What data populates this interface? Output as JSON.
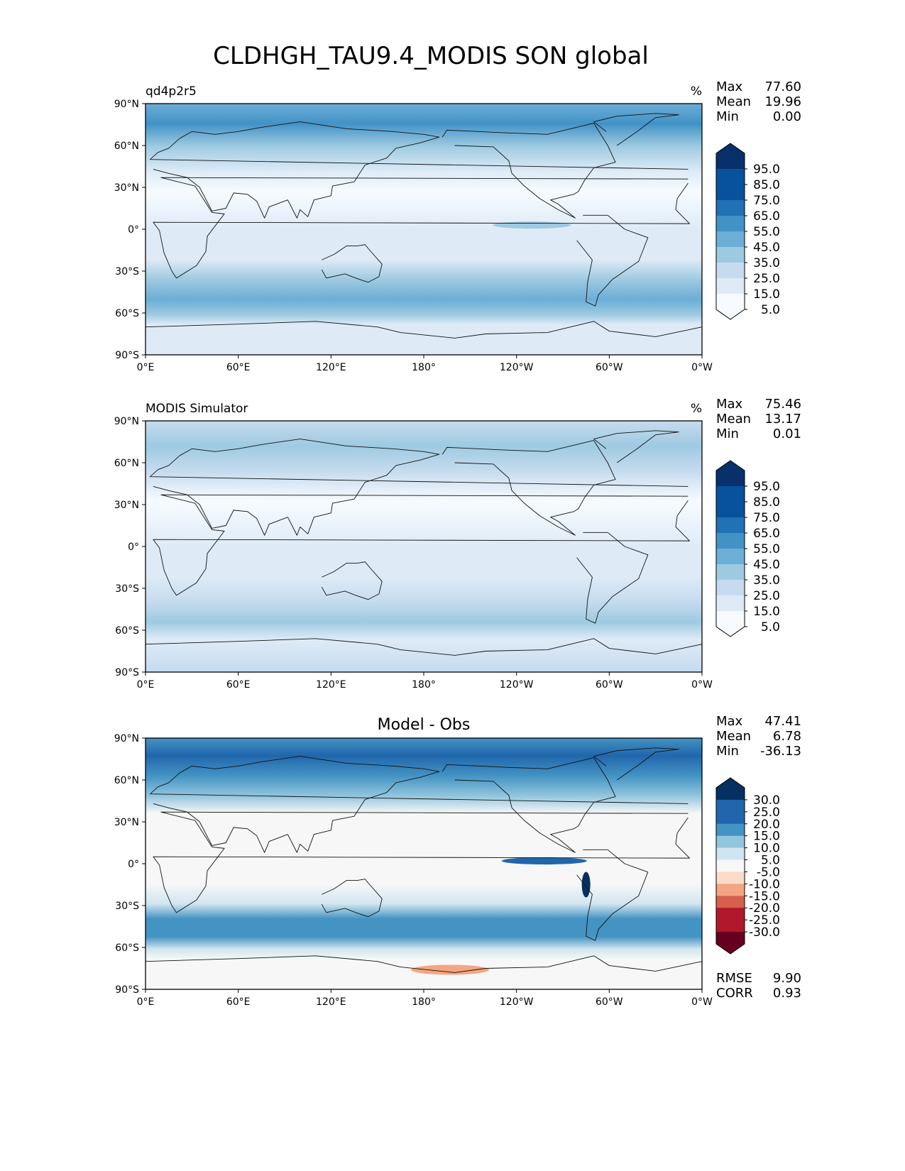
{
  "figure": {
    "title": "CLDHGH_TAU9.4_MODIS SON global"
  },
  "colors": {
    "blues": [
      "#f7fbff",
      "#deebf7",
      "#c6dbef",
      "#9ecae1",
      "#6baed6",
      "#4292c6",
      "#2171b5",
      "#08519c",
      "#08306b"
    ],
    "rdbu": [
      "#67001f",
      "#b2182b",
      "#d6604d",
      "#f4a582",
      "#fddbc7",
      "#f7f7f7",
      "#d1e5f0",
      "#92c5de",
      "#4393c3",
      "#2166ac",
      "#053061"
    ],
    "land_outline": "#111111"
  },
  "panels": [
    {
      "left_title": "qd4p2r5",
      "center_title": "",
      "units": "%",
      "stats": [
        {
          "label": "Max",
          "value": "77.60"
        },
        {
          "label": "Mean",
          "value": "19.96"
        },
        {
          "label": "Min",
          "value": "0.00"
        }
      ],
      "colorbar": [
        "95.0",
        "85.0",
        "75.0",
        "65.0",
        "55.0",
        "45.0",
        "35.0",
        "25.0",
        "15.0",
        "5.0"
      ],
      "metrics": []
    },
    {
      "left_title": "MODIS Simulator",
      "center_title": "",
      "units": "%",
      "stats": [
        {
          "label": "Max",
          "value": "75.46"
        },
        {
          "label": "Mean",
          "value": "13.17"
        },
        {
          "label": "Min",
          "value": "0.01"
        }
      ],
      "colorbar": [
        "95.0",
        "85.0",
        "75.0",
        "65.0",
        "55.0",
        "45.0",
        "35.0",
        "25.0",
        "15.0",
        "5.0"
      ],
      "metrics": []
    },
    {
      "left_title": "",
      "center_title": "Model - Obs",
      "units": "",
      "stats": [
        {
          "label": "Max",
          "value": "47.41"
        },
        {
          "label": "Mean",
          "value": "6.78"
        },
        {
          "label": "Min",
          "value": "-36.13"
        }
      ],
      "colorbar": [
        "30.0",
        "25.0",
        "20.0",
        "15.0",
        "10.0",
        "5.0",
        "-5.0",
        "-10.0",
        "-15.0",
        "-20.0",
        "-25.0",
        "-30.0"
      ],
      "metrics": [
        {
          "label": "RMSE",
          "value": "9.90"
        },
        {
          "label": "CORR",
          "value": "0.93"
        }
      ]
    }
  ],
  "axes": {
    "x_ticks": [
      "0°E",
      "60°E",
      "120°E",
      "180°",
      "120°W",
      "60°W",
      "0°W"
    ],
    "y_ticks": [
      "90°N",
      "60°N",
      "30°N",
      "0°",
      "30°S",
      "60°S",
      "90°S"
    ]
  },
  "chart_data": [
    {
      "type": "heatmap",
      "title": "qd4p2r5",
      "units": "%",
      "projection": "PlateCarree",
      "xlim": [
        0,
        360
      ],
      "ylim": [
        -90,
        90
      ],
      "lat": [
        90,
        75,
        60,
        45,
        30,
        15,
        0,
        -15,
        -30,
        -45,
        -60,
        -75,
        -90
      ],
      "zonal_mean": [
        55,
        50,
        38,
        22,
        12,
        10,
        15,
        16,
        18,
        40,
        55,
        25,
        10
      ],
      "levels": [
        5,
        15,
        25,
        35,
        45,
        55,
        65,
        75,
        85,
        95
      ],
      "max": 77.6,
      "mean": 19.96,
      "min": 0.0
    },
    {
      "type": "heatmap",
      "title": "MODIS Simulator",
      "units": "%",
      "projection": "PlateCarree",
      "xlim": [
        0,
        360
      ],
      "ylim": [
        -90,
        90
      ],
      "lat": [
        90,
        75,
        60,
        45,
        30,
        15,
        0,
        -15,
        -30,
        -45,
        -60,
        -75,
        -90
      ],
      "zonal_mean": [
        25,
        30,
        25,
        18,
        10,
        8,
        12,
        12,
        14,
        24,
        34,
        24,
        14
      ],
      "levels": [
        5,
        15,
        25,
        35,
        45,
        55,
        65,
        75,
        85,
        95
      ],
      "max": 75.46,
      "mean": 13.17,
      "min": 0.01
    },
    {
      "type": "heatmap",
      "title": "Model - Obs",
      "projection": "PlateCarree",
      "xlim": [
        0,
        360
      ],
      "ylim": [
        -90,
        90
      ],
      "lat": [
        90,
        75,
        60,
        45,
        30,
        15,
        0,
        -15,
        -30,
        -45,
        -60,
        -75,
        -90
      ],
      "zonal_mean": [
        30,
        20,
        13,
        4,
        2,
        2,
        3,
        4,
        4,
        16,
        21,
        1,
        -4
      ],
      "levels": [
        -30,
        -25,
        -20,
        -15,
        -10,
        -5,
        5,
        10,
        15,
        20,
        25,
        30
      ],
      "max": 47.41,
      "mean": 6.78,
      "min": -36.13,
      "rmse": 9.9,
      "corr": 0.93
    }
  ]
}
